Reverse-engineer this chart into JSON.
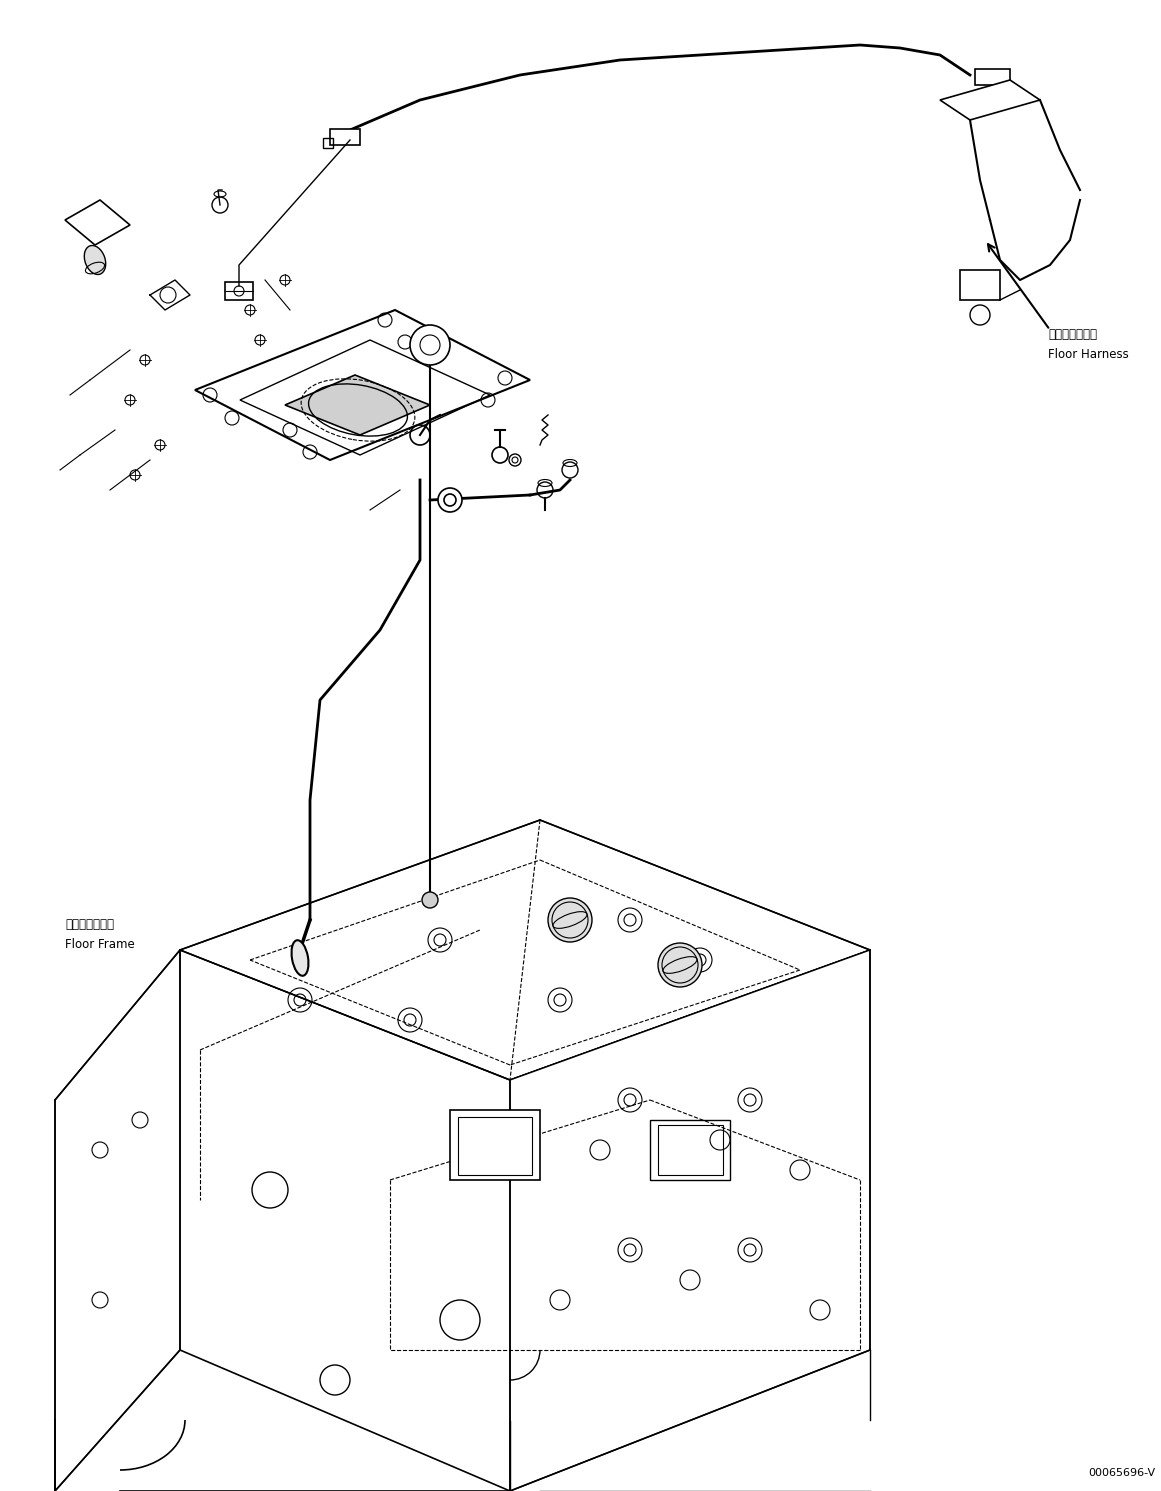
{
  "title": "",
  "background_color": "#ffffff",
  "line_color": "#000000",
  "line_width": 1.0,
  "fig_width": 11.61,
  "fig_height": 14.91,
  "dpi": 100,
  "label_floor_harness_jp": "フロアハーネス",
  "label_floor_harness_en": "Floor Harness",
  "label_floor_frame_jp": "フロアフレーム",
  "label_floor_frame_en": "Floor Frame",
  "label_part_number": "00065696-V",
  "font_size_label": 8.5,
  "font_size_part": 8.0
}
